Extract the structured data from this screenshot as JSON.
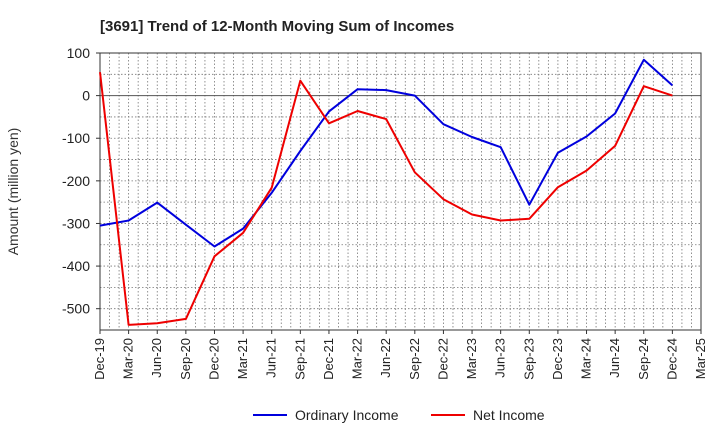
{
  "chart_data": {
    "type": "line",
    "title": "[3691]  Trend of 12-Month Moving Sum of Incomes",
    "xlabel": "",
    "ylabel": "Amount (million yen)",
    "ylim": [
      -550,
      100
    ],
    "yticks": [
      100,
      0,
      -100,
      -200,
      -300,
      -400,
      -500
    ],
    "grid": true,
    "legend_position": "bottom-center",
    "categories": [
      "Dec-19",
      "Mar-20",
      "Jun-20",
      "Sep-20",
      "Dec-20",
      "Mar-21",
      "Jun-21",
      "Sep-21",
      "Dec-21",
      "Mar-22",
      "Jun-22",
      "Sep-22",
      "Dec-22",
      "Mar-23",
      "Jun-23",
      "Sep-23",
      "Dec-23",
      "Mar-24",
      "Jun-24",
      "Sep-24",
      "Dec-24",
      "Mar-25"
    ],
    "series": [
      {
        "name": "Ordinary Income",
        "color": "#0000dd",
        "values": [
          -305,
          -293,
          -251,
          -303,
          -354,
          -312,
          -228,
          -130,
          -37,
          15,
          13,
          0,
          -67,
          -97,
          -121,
          -256,
          -134,
          -96,
          -42,
          84,
          24,
          null
        ]
      },
      {
        "name": "Net Income",
        "color": "#ee0000",
        "values": [
          55,
          -538,
          -534,
          -524,
          -377,
          -322,
          -216,
          35,
          -65,
          -36,
          -55,
          -180,
          -243,
          -279,
          -293,
          -289,
          -215,
          -176,
          -118,
          22,
          0,
          null
        ]
      }
    ]
  }
}
